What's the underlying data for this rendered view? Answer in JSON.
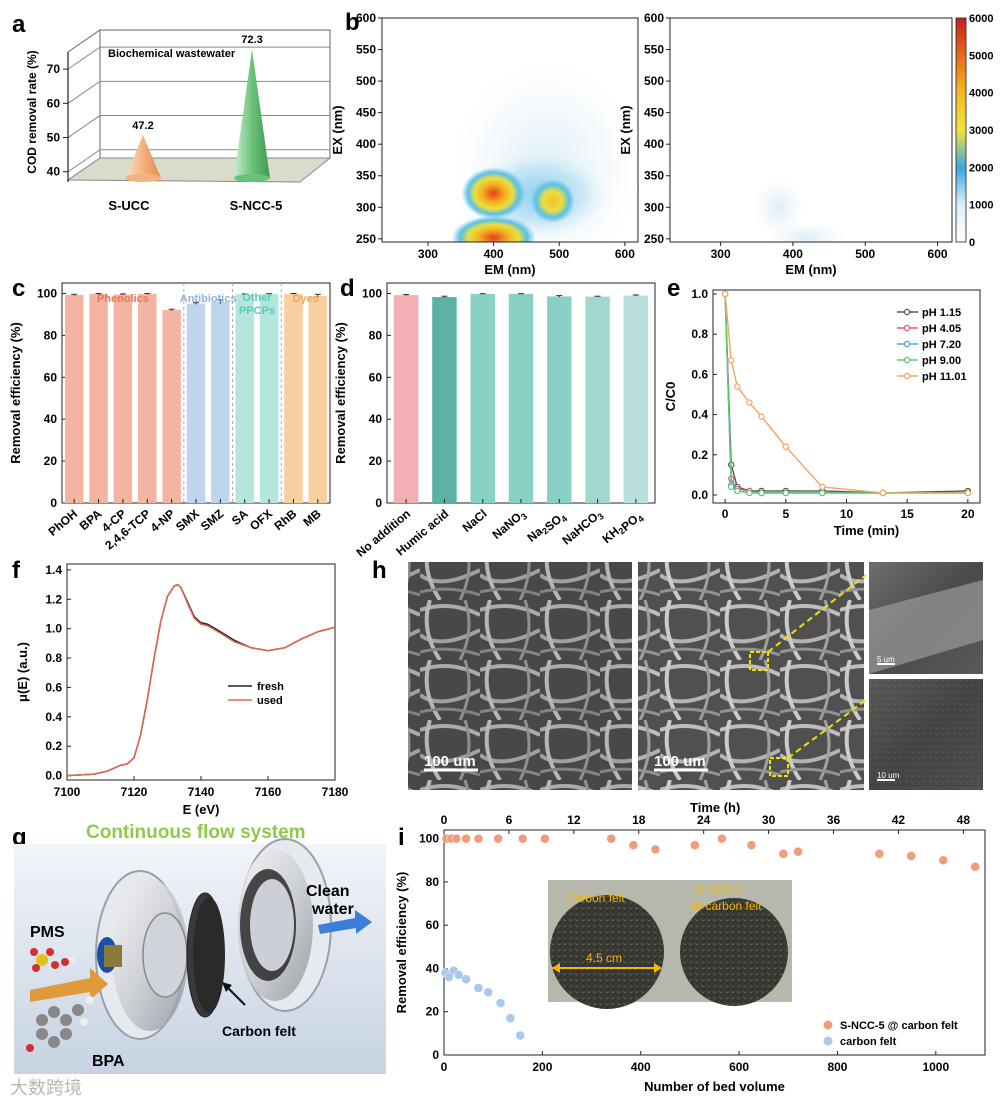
{
  "panel_labels": {
    "a": "a",
    "b": "b",
    "c": "c",
    "d": "d",
    "e": "e",
    "f": "f",
    "g": "g",
    "h": "h",
    "i": "i"
  },
  "watermark": "大数跨境",
  "chart_data": [
    {
      "id": "a",
      "type": "bar",
      "subtype": "3d-cone",
      "title": "Biochemical wastewater",
      "ylabel": "COD removal rate (%)",
      "ylim": [
        37,
        75
      ],
      "yticks": [
        40,
        50,
        60,
        70
      ],
      "categories": [
        "S-UCC",
        "S-NCC-5"
      ],
      "values": [
        47.2,
        72.3
      ],
      "labels": [
        "47.2",
        "72.3"
      ],
      "colors": [
        "#F5B27E",
        "#6CC17A"
      ]
    },
    {
      "id": "b",
      "type": "heatmap",
      "xlabel": "EM (nm)",
      "ylabel": "EX (nm)",
      "xlim": [
        230,
        620
      ],
      "ylim": [
        245,
        600
      ],
      "xticks": [
        300,
        400,
        500,
        600
      ],
      "yticks": [
        250,
        300,
        350,
        400,
        450,
        500,
        550,
        600
      ],
      "colorbar": {
        "min": 0,
        "max": 6000,
        "ticks": [
          0,
          1000,
          2000,
          3000,
          4000,
          5000,
          6000
        ]
      },
      "panels": [
        {
          "name": "before",
          "peaks": [
            {
              "em": 400,
              "ex": 320,
              "intensity": 5400
            },
            {
              "em": 400,
              "ex": 250,
              "intensity": 6000
            },
            {
              "em": 490,
              "ex": 320,
              "intensity": 2600
            },
            {
              "em": 480,
              "ex": 380,
              "intensity": 600
            }
          ]
        },
        {
          "name": "after",
          "peaks": [
            {
              "em": 380,
              "ex": 300,
              "intensity": 700
            },
            {
              "em": 420,
              "ex": 250,
              "intensity": 500
            }
          ]
        }
      ]
    },
    {
      "id": "c",
      "type": "bar",
      "ylabel": "Removal efficiency (%)",
      "ylim": [
        0,
        105
      ],
      "yticks": [
        0,
        20,
        40,
        60,
        80,
        100
      ],
      "categories": [
        "PhOH",
        "BPA",
        "4-CP",
        "2,4,6-TCP",
        "4-NP",
        "SMX",
        "SMZ",
        "SA",
        "OFX",
        "RhB",
        "MB"
      ],
      "values": [
        99.3,
        99.8,
        99.5,
        99.8,
        92.1,
        95.2,
        96.0,
        99.6,
        99.7,
        99.8,
        98.8
      ],
      "errors": [
        0.3,
        0.2,
        0.3,
        0.2,
        0.4,
        0.4,
        0.9,
        0.2,
        0.2,
        0.2,
        0.8
      ],
      "groups": [
        {
          "name": "Phenolics",
          "color": "#E8765C",
          "bar": "#F4B4A2"
        },
        {
          "name": "Antibiotics",
          "color": "#8FB4E0",
          "bar": "#BFD5EE"
        },
        {
          "name": "Other PPCPs",
          "color": "#5CC9BD",
          "bar": "#B3E6DD"
        },
        {
          "name": "Dyes",
          "color": "#F0A85A",
          "bar": "#F7CFA0"
        }
      ],
      "group_of": [
        0,
        0,
        0,
        0,
        0,
        1,
        1,
        2,
        2,
        3,
        3
      ],
      "group_labels": [
        "Phenolics",
        "Antibiotics",
        "Other",
        "PPCPs",
        "Dyes"
      ]
    },
    {
      "id": "d",
      "type": "bar",
      "ylabel": "Removal efficiency (%)",
      "ylim": [
        0,
        105
      ],
      "yticks": [
        0,
        20,
        40,
        60,
        80,
        100
      ],
      "categories": [
        "No addition",
        "Humic acid",
        "NaCl",
        "NaNO3",
        "Na2SO4",
        "NaHCO3",
        "KH2PO4"
      ],
      "values": [
        99.2,
        98.3,
        99.8,
        99.8,
        98.6,
        98.5,
        99.0
      ],
      "errors": [
        0.3,
        0.4,
        0.1,
        0.1,
        0.4,
        0.2,
        0.3
      ],
      "colors": [
        "#F3AFB4",
        "#5BB3A6",
        "#89D0C5",
        "#89D0C5",
        "#89D0C5",
        "#A2D7CE",
        "#B8E0DA"
      ]
    },
    {
      "id": "e",
      "type": "line",
      "xlabel": "Time (min)",
      "ylabel": "C/C0",
      "xlim": [
        -1,
        21
      ],
      "ylim": [
        -0.04,
        1.02
      ],
      "xticks": [
        0,
        5,
        10,
        15,
        20
      ],
      "yticks": [
        0.0,
        0.2,
        0.4,
        0.6,
        0.8,
        1.0
      ],
      "series": [
        {
          "name": "pH 1.15",
          "color": "#555555",
          "x": [
            0,
            0.5,
            1,
            2,
            3,
            5,
            8,
            13,
            20
          ],
          "y": [
            1.0,
            0.15,
            0.04,
            0.02,
            0.02,
            0.02,
            0.02,
            0.01,
            0.02
          ]
        },
        {
          "name": "pH 4.05",
          "color": "#E8557A",
          "x": [
            0,
            0.5,
            1,
            2,
            3,
            5,
            8,
            13,
            20
          ],
          "y": [
            1.0,
            0.08,
            0.03,
            0.02,
            0.01,
            0.01,
            0.01,
            0.01,
            0.01
          ]
        },
        {
          "name": "pH 7.20",
          "color": "#4AA8E8",
          "x": [
            0,
            0.5,
            1,
            2,
            3,
            5,
            8,
            13,
            20
          ],
          "y": [
            1.0,
            0.05,
            0.02,
            0.01,
            0.01,
            0.01,
            0.01,
            0.01,
            0.01
          ]
        },
        {
          "name": "pH 9.00",
          "color": "#5CCB6B",
          "x": [
            0,
            0.5,
            1,
            2,
            3,
            5,
            8,
            13,
            20
          ],
          "y": [
            1.0,
            0.04,
            0.02,
            0.01,
            0.01,
            0.01,
            0.01,
            0.01,
            0.01
          ]
        },
        {
          "name": "pH 11.01",
          "color": "#F2A560",
          "x": [
            0,
            0.5,
            1,
            2,
            3,
            5,
            8,
            13,
            20
          ],
          "y": [
            1.0,
            0.67,
            0.54,
            0.46,
            0.39,
            0.24,
            0.04,
            0.01,
            0.01
          ]
        }
      ]
    },
    {
      "id": "f",
      "type": "line",
      "xlabel": "E (eV)",
      "ylabel": "μ(E) (a.u.)",
      "xlim": [
        7100,
        7180
      ],
      "ylim": [
        -0.03,
        1.44
      ],
      "xticks": [
        7100,
        7120,
        7140,
        7160,
        7180
      ],
      "yticks": [
        0.0,
        0.2,
        0.4,
        0.6,
        0.8,
        1.0,
        1.2,
        1.4
      ],
      "series": [
        {
          "name": "fresh",
          "color": "#222222",
          "x": [
            7100,
            7108,
            7112,
            7114,
            7116,
            7118,
            7120,
            7122,
            7124,
            7126,
            7128,
            7130,
            7132,
            7133,
            7134,
            7136,
            7138,
            7140,
            7142,
            7145,
            7150,
            7155,
            7160,
            7165,
            7170,
            7175,
            7180
          ],
          "y": [
            0.0,
            0.01,
            0.03,
            0.05,
            0.07,
            0.08,
            0.12,
            0.28,
            0.52,
            0.8,
            1.05,
            1.22,
            1.29,
            1.3,
            1.28,
            1.18,
            1.08,
            1.04,
            1.03,
            0.99,
            0.92,
            0.87,
            0.85,
            0.87,
            0.93,
            0.98,
            1.01
          ]
        },
        {
          "name": "used",
          "color": "#E06A4E",
          "x": [
            7100,
            7108,
            7112,
            7114,
            7116,
            7118,
            7120,
            7122,
            7124,
            7126,
            7128,
            7130,
            7132,
            7133,
            7134,
            7136,
            7138,
            7140,
            7142,
            7145,
            7150,
            7155,
            7160,
            7165,
            7170,
            7175,
            7180
          ],
          "y": [
            0.0,
            0.01,
            0.03,
            0.05,
            0.07,
            0.08,
            0.12,
            0.28,
            0.52,
            0.8,
            1.05,
            1.22,
            1.29,
            1.3,
            1.28,
            1.17,
            1.07,
            1.03,
            1.02,
            0.98,
            0.91,
            0.87,
            0.85,
            0.87,
            0.93,
            0.98,
            1.01
          ]
        }
      ]
    },
    {
      "id": "i",
      "type": "scatter",
      "xlabel": "Number of bed volume",
      "ylabel": "Removal efficiency (%)",
      "x2label": "Time (h)",
      "xlim": [
        0,
        1100
      ],
      "ylim": [
        0,
        104
      ],
      "xticks": [
        0,
        200,
        400,
        600,
        800,
        1000
      ],
      "yticks": [
        0,
        20,
        40,
        60,
        80,
        100
      ],
      "x2lim": [
        0,
        50
      ],
      "x2ticks": [
        0,
        6,
        12,
        18,
        24,
        30,
        36,
        42,
        48
      ],
      "series": [
        {
          "name": "S-NCC-5 @ carbon felt",
          "color": "#F29B7A",
          "x": [
            5,
            15,
            25,
            45,
            70,
            110,
            160,
            205,
            340,
            385,
            430,
            510,
            565,
            625,
            690,
            720,
            885,
            950,
            1015,
            1080
          ],
          "y": [
            100,
            100,
            100,
            100,
            100,
            100,
            100,
            100,
            100,
            97,
            95,
            97,
            100,
            97,
            93,
            94,
            93,
            92,
            90,
            87
          ]
        },
        {
          "name": "carbon felt",
          "color": "#A8C8EC",
          "x": [
            3,
            10,
            20,
            30,
            45,
            70,
            90,
            115,
            135,
            155
          ],
          "y": [
            38,
            36,
            39,
            37,
            35,
            31,
            29,
            24,
            17,
            9
          ]
        }
      ]
    }
  ],
  "panel_h": {
    "scalebars": [
      "100 um",
      "100 um",
      "5 um",
      "10 um"
    ],
    "x2title": "Time (h)"
  },
  "panel_g": {
    "title": "Continuous flow system",
    "labels": [
      "PMS",
      "BPA",
      "Carbon felt",
      "Clean",
      "water"
    ]
  },
  "panel_i_inset": {
    "labels": [
      "Carbon felt",
      "S-NCC-5",
      "@ carbon felt",
      "4.5 cm"
    ]
  }
}
